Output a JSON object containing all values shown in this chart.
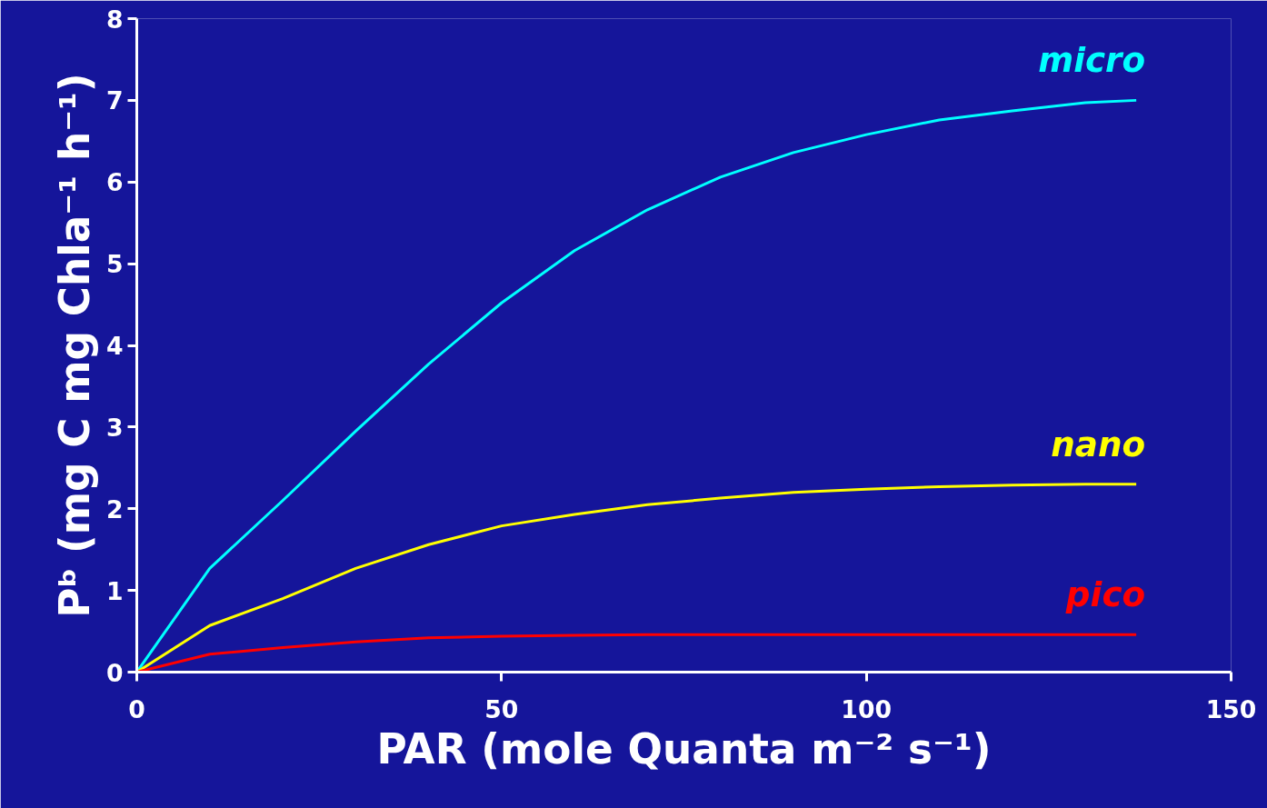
{
  "chart_data": {
    "type": "line",
    "xlabel": "PAR (mole Quanta m⁻² s⁻¹)",
    "ylabel": "Pᵇ (mg C mg Chla⁻¹ h⁻¹)",
    "x": [
      0,
      10,
      20,
      30,
      40,
      50,
      60,
      70,
      80,
      90,
      100,
      110,
      120,
      130,
      137
    ],
    "xlim": [
      0,
      150
    ],
    "xticks": [
      0,
      50,
      100,
      150
    ],
    "ylim": [
      0,
      8
    ],
    "yticks": [
      0,
      1,
      2,
      3,
      4,
      5,
      6,
      7,
      8
    ],
    "grid": false,
    "marker": "none",
    "line_style": "solid",
    "series": [
      {
        "name": "micro",
        "color": "#00ffff",
        "values": [
          0,
          1.27,
          2.1,
          2.95,
          3.77,
          4.52,
          5.16,
          5.66,
          6.06,
          6.36,
          6.58,
          6.76,
          6.87,
          6.97,
          7.0
        ]
      },
      {
        "name": "nano",
        "color": "#ffff00",
        "values": [
          0,
          0.57,
          0.9,
          1.27,
          1.56,
          1.79,
          1.93,
          2.05,
          2.13,
          2.2,
          2.24,
          2.27,
          2.29,
          2.3,
          2.3
        ]
      },
      {
        "name": "pico",
        "color": "#ff0000",
        "values": [
          0,
          0.22,
          0.3,
          0.37,
          0.42,
          0.44,
          0.45,
          0.46,
          0.46,
          0.46,
          0.46,
          0.46,
          0.46,
          0.46,
          0.46
        ]
      }
    ]
  }
}
